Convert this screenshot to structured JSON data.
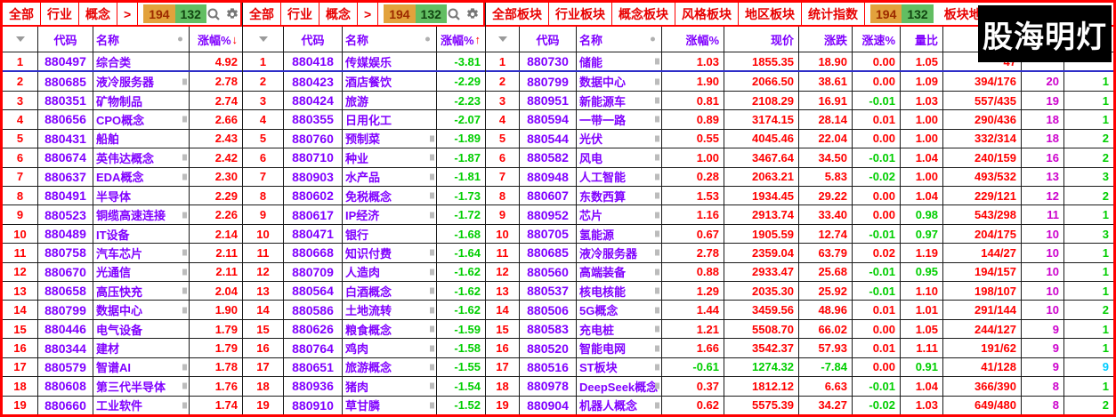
{
  "logo": {
    "text": "股海明灯"
  },
  "panels": [
    {
      "tabs": [
        "全部",
        "行业",
        "概念",
        ">"
      ],
      "badge_up": "194",
      "badge_down": "132",
      "icons": [
        "search-icon",
        "gear-icon"
      ],
      "headers": {
        "code": "代码",
        "name": "名称",
        "change": "涨幅%",
        "sort": "↓"
      },
      "rows": [
        {
          "n": "1",
          "code": "880497",
          "name": "综合类",
          "chg": "4.92",
          "mk": 0
        },
        {
          "n": "2",
          "code": "880685",
          "name": "液冷服务器",
          "chg": "2.78",
          "mk": 1
        },
        {
          "n": "3",
          "code": "880351",
          "name": "矿物制品",
          "chg": "2.74",
          "mk": 0
        },
        {
          "n": "4",
          "code": "880656",
          "name": "CPO概念",
          "chg": "2.66",
          "mk": 1
        },
        {
          "n": "5",
          "code": "880431",
          "name": "船舶",
          "chg": "2.43",
          "mk": 0
        },
        {
          "n": "6",
          "code": "880674",
          "name": "英伟达概念",
          "chg": "2.42",
          "mk": 1
        },
        {
          "n": "7",
          "code": "880637",
          "name": "EDA概念",
          "chg": "2.30",
          "mk": 1
        },
        {
          "n": "8",
          "code": "880491",
          "name": "半导体",
          "chg": "2.29",
          "mk": 0
        },
        {
          "n": "9",
          "code": "880523",
          "name": "铜缆高速连接",
          "chg": "2.26",
          "mk": 1
        },
        {
          "n": "10",
          "code": "880489",
          "name": "IT设备",
          "chg": "2.14",
          "mk": 0
        },
        {
          "n": "11",
          "code": "880758",
          "name": "汽车芯片",
          "chg": "2.11",
          "mk": 1
        },
        {
          "n": "12",
          "code": "880670",
          "name": "光通信",
          "chg": "2.11",
          "mk": 1
        },
        {
          "n": "13",
          "code": "880658",
          "name": "高压快充",
          "chg": "2.04",
          "mk": 1
        },
        {
          "n": "14",
          "code": "880799",
          "name": "数据中心",
          "chg": "1.90",
          "mk": 1
        },
        {
          "n": "15",
          "code": "880446",
          "name": "电气设备",
          "chg": "1.79",
          "mk": 0
        },
        {
          "n": "16",
          "code": "880344",
          "name": "建材",
          "chg": "1.79",
          "mk": 0
        },
        {
          "n": "17",
          "code": "880579",
          "name": "智谱AI",
          "chg": "1.78",
          "mk": 1
        },
        {
          "n": "18",
          "code": "880608",
          "name": "第三代半导体",
          "chg": "1.76",
          "mk": 1
        },
        {
          "n": "19",
          "code": "880660",
          "name": "工业软件",
          "chg": "1.74",
          "mk": 1
        }
      ]
    },
    {
      "tabs": [
        "全部",
        "行业",
        "概念",
        ">"
      ],
      "badge_up": "194",
      "badge_down": "132",
      "icons": [
        "search-icon",
        "gear-icon"
      ],
      "headers": {
        "code": "代码",
        "name": "名称",
        "change": "涨幅%",
        "sort": "↑"
      },
      "rows": [
        {
          "n": "1",
          "code": "880418",
          "name": "传媒娱乐",
          "chg": "-3.81",
          "mk": 0
        },
        {
          "n": "2",
          "code": "880423",
          "name": "酒店餐饮",
          "chg": "-2.29",
          "mk": 0
        },
        {
          "n": "3",
          "code": "880424",
          "name": "旅游",
          "chg": "-2.23",
          "mk": 0
        },
        {
          "n": "4",
          "code": "880355",
          "name": "日用化工",
          "chg": "-2.07",
          "mk": 0
        },
        {
          "n": "5",
          "code": "880760",
          "name": "预制菜",
          "chg": "-1.89",
          "mk": 1
        },
        {
          "n": "6",
          "code": "880710",
          "name": "种业",
          "chg": "-1.87",
          "mk": 1
        },
        {
          "n": "7",
          "code": "880903",
          "name": "水产品",
          "chg": "-1.81",
          "mk": 1
        },
        {
          "n": "8",
          "code": "880602",
          "name": "免税概念",
          "chg": "-1.73",
          "mk": 1
        },
        {
          "n": "9",
          "code": "880617",
          "name": "IP经济",
          "chg": "-1.72",
          "mk": 1
        },
        {
          "n": "10",
          "code": "880471",
          "name": "银行",
          "chg": "-1.68",
          "mk": 0
        },
        {
          "n": "11",
          "code": "880668",
          "name": "知识付费",
          "chg": "-1.64",
          "mk": 1
        },
        {
          "n": "12",
          "code": "880709",
          "name": "人造肉",
          "chg": "-1.62",
          "mk": 1
        },
        {
          "n": "13",
          "code": "880564",
          "name": "白酒概念",
          "chg": "-1.62",
          "mk": 1
        },
        {
          "n": "14",
          "code": "880586",
          "name": "土地流转",
          "chg": "-1.62",
          "mk": 1
        },
        {
          "n": "15",
          "code": "880626",
          "name": "粮食概念",
          "chg": "-1.59",
          "mk": 1
        },
        {
          "n": "16",
          "code": "880764",
          "name": "鸡肉",
          "chg": "-1.58",
          "mk": 1
        },
        {
          "n": "17",
          "code": "880651",
          "name": "旅游概念",
          "chg": "-1.55",
          "mk": 1
        },
        {
          "n": "18",
          "code": "880936",
          "name": "猪肉",
          "chg": "-1.54",
          "mk": 1
        },
        {
          "n": "19",
          "code": "880910",
          "name": "草甘膦",
          "chg": "-1.52",
          "mk": 1
        }
      ]
    },
    {
      "tabs": [
        "全部板块",
        "行业板块",
        "概念板块",
        "风格板块",
        "地区板块",
        "统计指数"
      ],
      "badge_up": "194",
      "badge_down": "132",
      "map_label": "板块地图",
      "headers": {
        "code": "代码",
        "name": "名称",
        "change": "涨幅%",
        "sort": "",
        "price": "现价",
        "diff": "涨跌",
        "speed": "涨速%",
        "ratio": "量比",
        "updown": "涨",
        "count": "",
        "extra": ""
      },
      "rows": [
        {
          "n": "1",
          "code": "880730",
          "name": "储能",
          "chg": "1.03",
          "price": "1855.35",
          "diff": "18.90",
          "spd": "0.00",
          "ratio": "1.05",
          "ud": "47",
          "cnt": "",
          "ex": "",
          "exc": 0,
          "mk": 1
        },
        {
          "n": "2",
          "code": "880799",
          "name": "数据中心",
          "chg": "1.90",
          "price": "2066.50",
          "diff": "38.61",
          "spd": "0.00",
          "ratio": "1.09",
          "ud": "394/176",
          "cnt": "20",
          "ex": "1",
          "exc": 0,
          "mk": 1
        },
        {
          "n": "3",
          "code": "880951",
          "name": "新能源车",
          "chg": "0.81",
          "price": "2108.29",
          "diff": "16.91",
          "spd": "-0.01",
          "ratio": "1.03",
          "ud": "557/435",
          "cnt": "19",
          "ex": "1",
          "exc": 0,
          "mk": 1
        },
        {
          "n": "4",
          "code": "880594",
          "name": "一带一路",
          "chg": "0.89",
          "price": "3174.15",
          "diff": "28.14",
          "spd": "0.01",
          "ratio": "1.00",
          "ud": "290/436",
          "cnt": "18",
          "ex": "1",
          "exc": 0,
          "mk": 1
        },
        {
          "n": "5",
          "code": "880544",
          "name": "光伏",
          "chg": "0.55",
          "price": "4045.46",
          "diff": "22.04",
          "spd": "0.00",
          "ratio": "1.00",
          "ud": "332/314",
          "cnt": "18",
          "ex": "2",
          "exc": 0,
          "mk": 1
        },
        {
          "n": "6",
          "code": "880582",
          "name": "风电",
          "chg": "1.00",
          "price": "3467.64",
          "diff": "34.50",
          "spd": "-0.01",
          "ratio": "1.04",
          "ud": "240/159",
          "cnt": "16",
          "ex": "2",
          "exc": 0,
          "mk": 1
        },
        {
          "n": "7",
          "code": "880948",
          "name": "人工智能",
          "chg": "0.28",
          "price": "2063.21",
          "diff": "5.83",
          "spd": "-0.02",
          "ratio": "1.00",
          "ud": "493/532",
          "cnt": "13",
          "ex": "3",
          "exc": 0,
          "mk": 1
        },
        {
          "n": "8",
          "code": "880607",
          "name": "东数西算",
          "chg": "1.53",
          "price": "1934.45",
          "diff": "29.22",
          "spd": "0.00",
          "ratio": "1.04",
          "ud": "229/121",
          "cnt": "12",
          "ex": "2",
          "exc": 0,
          "mk": 1
        },
        {
          "n": "9",
          "code": "880952",
          "name": "芯片",
          "chg": "1.16",
          "price": "2913.74",
          "diff": "33.40",
          "spd": "0.00",
          "ratio": "0.98",
          "ud": "543/298",
          "cnt": "11",
          "ex": "1",
          "exc": 0,
          "mk": 1
        },
        {
          "n": "10",
          "code": "880705",
          "name": "氢能源",
          "chg": "0.67",
          "price": "1905.59",
          "diff": "12.74",
          "spd": "-0.01",
          "ratio": "0.97",
          "ud": "204/175",
          "cnt": "10",
          "ex": "3",
          "exc": 0,
          "mk": 1
        },
        {
          "n": "11",
          "code": "880685",
          "name": "液冷服务器",
          "chg": "2.78",
          "price": "2359.04",
          "diff": "63.79",
          "spd": "0.02",
          "ratio": "1.19",
          "ud": "144/27",
          "cnt": "10",
          "ex": "1",
          "exc": 0,
          "mk": 1
        },
        {
          "n": "12",
          "code": "880560",
          "name": "高端装备",
          "chg": "0.88",
          "price": "2933.47",
          "diff": "25.68",
          "spd": "-0.01",
          "ratio": "0.95",
          "ud": "194/157",
          "cnt": "10",
          "ex": "1",
          "exc": 0,
          "mk": 1
        },
        {
          "n": "13",
          "code": "880537",
          "name": "核电核能",
          "chg": "1.29",
          "price": "2035.30",
          "diff": "25.92",
          "spd": "-0.01",
          "ratio": "1.10",
          "ud": "198/107",
          "cnt": "10",
          "ex": "1",
          "exc": 0,
          "mk": 1
        },
        {
          "n": "14",
          "code": "880506",
          "name": "5G概念",
          "chg": "1.44",
          "price": "3459.56",
          "diff": "48.96",
          "spd": "0.01",
          "ratio": "1.01",
          "ud": "291/144",
          "cnt": "10",
          "ex": "2",
          "exc": 0,
          "mk": 1
        },
        {
          "n": "15",
          "code": "880583",
          "name": "充电桩",
          "chg": "1.21",
          "price": "5508.70",
          "diff": "66.02",
          "spd": "0.00",
          "ratio": "1.05",
          "ud": "244/127",
          "cnt": "9",
          "ex": "1",
          "exc": 0,
          "mk": 1
        },
        {
          "n": "16",
          "code": "880520",
          "name": "智能电网",
          "chg": "1.66",
          "price": "3542.37",
          "diff": "57.93",
          "spd": "0.01",
          "ratio": "1.11",
          "ud": "191/62",
          "cnt": "9",
          "ex": "1",
          "exc": 0,
          "mk": 1
        },
        {
          "n": "17",
          "code": "880516",
          "name": "ST板块",
          "chg": "-0.61",
          "price": "1274.32",
          "diff": "-7.84",
          "spd": "0.00",
          "ratio": "0.91",
          "ud": "41/128",
          "cnt": "9",
          "ex": "9",
          "exc": 1,
          "mk": 1
        },
        {
          "n": "18",
          "code": "880978",
          "name": "DeepSeek概念",
          "chg": "0.37",
          "price": "1812.12",
          "diff": "6.63",
          "spd": "-0.01",
          "ratio": "1.04",
          "ud": "366/390",
          "cnt": "8",
          "ex": "1",
          "exc": 0,
          "mk": 1
        },
        {
          "n": "19",
          "code": "880904",
          "name": "机器人概念",
          "chg": "0.62",
          "price": "5575.39",
          "diff": "34.27",
          "spd": "-0.02",
          "ratio": "1.03",
          "ud": "649/480",
          "cnt": "8",
          "ex": "2",
          "exc": 0,
          "mk": 1
        }
      ]
    }
  ]
}
